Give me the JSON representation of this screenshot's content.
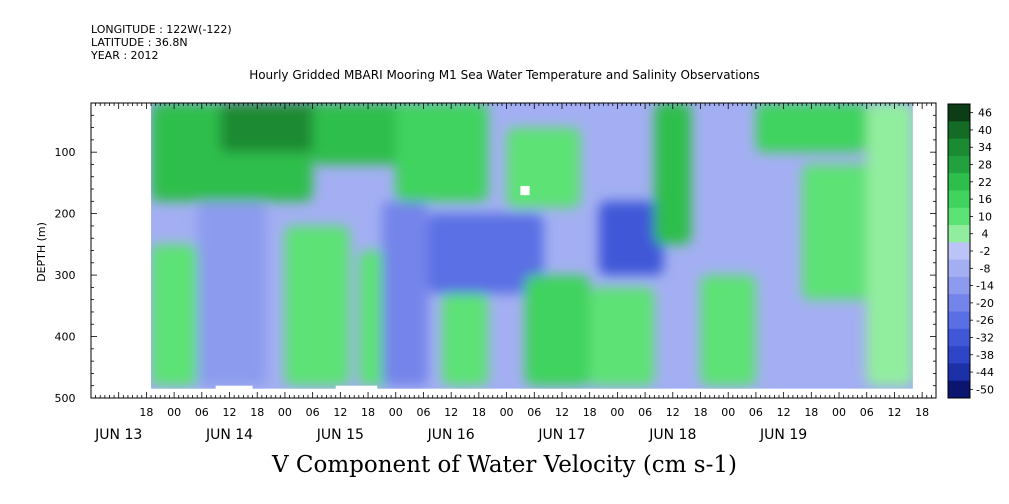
{
  "header": {
    "longitude": "LONGITUDE : 122W(-122)",
    "latitude": "LATITUDE : 36.8N",
    "year": "YEAR : 2012",
    "title": "Hourly Gridded MBARI Mooring M1 Sea Water Temperature and Salinity Observations"
  },
  "chart_data": {
    "type": "heatmap",
    "title": "Hourly Gridded MBARI Mooring M1 Sea Water Temperature and Salinity Observations",
    "variable_label": "V Component of Water Velocity (cm s-1)",
    "ylabel": "DEPTH (m)",
    "y_inverted": true,
    "ylim": [
      500,
      20
    ],
    "yticks": [
      100,
      200,
      300,
      400,
      500
    ],
    "x_hour_ticks": [
      {
        "time": -6,
        "label": "18"
      },
      {
        "time": 0,
        "label": "00"
      },
      {
        "time": 6,
        "label": "06"
      },
      {
        "time": 12,
        "label": "12"
      },
      {
        "time": 18,
        "label": "18"
      },
      {
        "time": 24,
        "label": "00"
      },
      {
        "time": 30,
        "label": "06"
      },
      {
        "time": 36,
        "label": "12"
      },
      {
        "time": 42,
        "label": "18"
      },
      {
        "time": 48,
        "label": "00"
      },
      {
        "time": 54,
        "label": "06"
      },
      {
        "time": 60,
        "label": "12"
      },
      {
        "time": 66,
        "label": "18"
      },
      {
        "time": 72,
        "label": "00"
      },
      {
        "time": 78,
        "label": "06"
      },
      {
        "time": 84,
        "label": "12"
      },
      {
        "time": 90,
        "label": "18"
      },
      {
        "time": 96,
        "label": "00"
      },
      {
        "time": 102,
        "label": "06"
      },
      {
        "time": 108,
        "label": "12"
      },
      {
        "time": 114,
        "label": "18"
      },
      {
        "time": 120,
        "label": "00"
      },
      {
        "time": 126,
        "label": "06"
      },
      {
        "time": 132,
        "label": "12"
      },
      {
        "time": 138,
        "label": "18"
      },
      {
        "time": 144,
        "label": "00"
      },
      {
        "time": 150,
        "label": "06"
      },
      {
        "time": 156,
        "label": "12"
      },
      {
        "time": 162,
        "label": "18"
      }
    ],
    "x_date_labels": [
      {
        "time": -12,
        "label": "JUN 13"
      },
      {
        "time": 12,
        "label": "JUN 14"
      },
      {
        "time": 36,
        "label": "JUN 15"
      },
      {
        "time": 60,
        "label": "JUN 16"
      },
      {
        "time": 84,
        "label": "JUN 17"
      },
      {
        "time": 108,
        "label": "JUN 18"
      },
      {
        "time": 132,
        "label": "JUN 19"
      }
    ],
    "colorbar": {
      "labels": [
        "46",
        "40",
        "34",
        "28",
        "22",
        "16",
        "10",
        "4",
        "-2",
        "-8",
        "-14",
        "-20",
        "-26",
        "-32",
        "-38",
        "-44",
        "-50"
      ],
      "colors": [
        "#0c3d16",
        "#146b26",
        "#1a8a33",
        "#22a23f",
        "#2ebe4c",
        "#40d35e",
        "#5de276",
        "#92ee9f",
        "#bcc4f7",
        "#a3aff2",
        "#8c9bee",
        "#7484ea",
        "#5a6fe4",
        "#4058d8",
        "#2e45c8",
        "#1c30a8",
        "#0b1570"
      ]
    },
    "regions": [
      {
        "t0": -5,
        "t1": 30,
        "d0": 20,
        "d1": 180,
        "value": 22
      },
      {
        "t0": 10,
        "t1": 40,
        "d0": 20,
        "d1": 100,
        "value": 34
      },
      {
        "t0": 30,
        "t1": 50,
        "d0": 20,
        "d1": 120,
        "value": 22
      },
      {
        "t0": -5,
        "t1": 5,
        "d0": 250,
        "d1": 480,
        "value": 10
      },
      {
        "t0": 5,
        "t1": 20,
        "d0": 180,
        "d1": 480,
        "value": -14
      },
      {
        "t0": 24,
        "t1": 38,
        "d0": 220,
        "d1": 480,
        "value": 10
      },
      {
        "t0": 40,
        "t1": 52,
        "d0": 260,
        "d1": 480,
        "value": 10
      },
      {
        "t0": 48,
        "t1": 68,
        "d0": 20,
        "d1": 180,
        "value": 16
      },
      {
        "t0": 45,
        "t1": 55,
        "d0": 180,
        "d1": 480,
        "value": -20
      },
      {
        "t0": 55,
        "t1": 80,
        "d0": 200,
        "d1": 330,
        "value": -26
      },
      {
        "t0": 58,
        "t1": 68,
        "d0": 330,
        "d1": 480,
        "value": 10
      },
      {
        "t0": 72,
        "t1": 88,
        "d0": 60,
        "d1": 190,
        "value": 10
      },
      {
        "t0": 76,
        "t1": 90,
        "d0": 300,
        "d1": 480,
        "value": 16
      },
      {
        "t0": 92,
        "t1": 106,
        "d0": 180,
        "d1": 300,
        "value": -32
      },
      {
        "t0": 90,
        "t1": 104,
        "d0": 320,
        "d1": 480,
        "value": 10
      },
      {
        "t0": 104,
        "t1": 112,
        "d0": 20,
        "d1": 250,
        "value": 22
      },
      {
        "t0": 114,
        "t1": 126,
        "d0": 300,
        "d1": 480,
        "value": 10
      },
      {
        "t0": 126,
        "t1": 150,
        "d0": 20,
        "d1": 100,
        "value": 16
      },
      {
        "t0": 136,
        "t1": 156,
        "d0": 120,
        "d1": 340,
        "value": 10
      },
      {
        "t0": 150,
        "t1": 160,
        "d0": 20,
        "d1": 480,
        "value": 4
      }
    ],
    "missing": [
      {
        "t0": 9,
        "t1": 17,
        "d0": 480,
        "d1": 500
      },
      {
        "t0": 35,
        "t1": 44,
        "d0": 480,
        "d1": 500
      },
      {
        "t0": 75,
        "t1": 77,
        "d0": 155,
        "d1": 170
      }
    ],
    "data_extent": {
      "t0": -5,
      "t1": 160,
      "d0": 20,
      "d1": 485
    }
  }
}
